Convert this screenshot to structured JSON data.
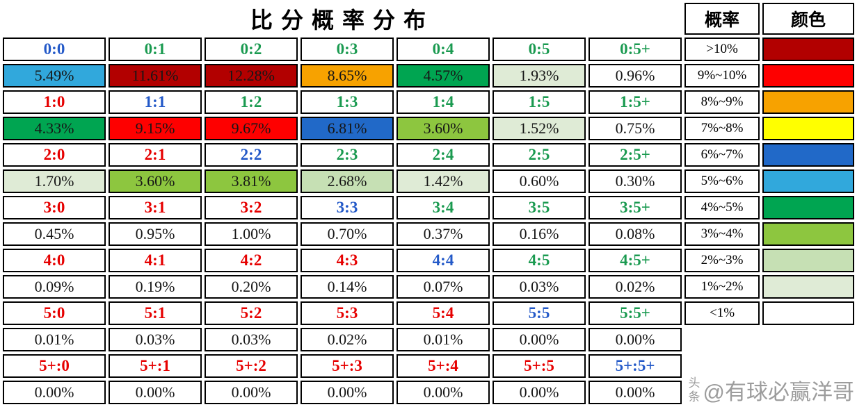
{
  "title": "比分概率分布",
  "score_colors": {
    "home_win": "#E60000",
    "draw": "#2359C8",
    "away_win": "#1A9A50"
  },
  "legend": {
    "prob_header": "概率",
    "color_header": "颜色",
    "entries": [
      {
        "range": ">10%",
        "color": "#B20000"
      },
      {
        "range": "9%~10%",
        "color": "#FE0000"
      },
      {
        "range": "8%~9%",
        "color": "#F7A200"
      },
      {
        "range": "7%~8%",
        "color": "#FFFF00"
      },
      {
        "range": "6%~7%",
        "color": "#2169C8"
      },
      {
        "range": "5%~6%",
        "color": "#31A8DC"
      },
      {
        "range": "4%~5%",
        "color": "#00A551"
      },
      {
        "range": "3%~4%",
        "color": "#8DC63F"
      },
      {
        "range": "2%~3%",
        "color": "#C6E0B4"
      },
      {
        "range": "1%~2%",
        "color": "#DFEBD6"
      },
      {
        "range": "<1%",
        "color": "#FFFFFF"
      }
    ]
  },
  "grid": {
    "row_pairs": [
      {
        "scores": [
          {
            "label": "0:0",
            "type": "draw"
          },
          {
            "label": "0:1",
            "type": "away_win"
          },
          {
            "label": "0:2",
            "type": "away_win"
          },
          {
            "label": "0:3",
            "type": "away_win"
          },
          {
            "label": "0:4",
            "type": "away_win"
          },
          {
            "label": "0:5",
            "type": "away_win"
          },
          {
            "label": "0:5+",
            "type": "away_win"
          }
        ],
        "values": [
          {
            "text": "5.49%",
            "bucket": 5
          },
          {
            "text": "11.61%",
            "bucket": 0
          },
          {
            "text": "12.28%",
            "bucket": 0
          },
          {
            "text": "8.65%",
            "bucket": 2
          },
          {
            "text": "4.57%",
            "bucket": 6
          },
          {
            "text": "1.93%",
            "bucket": 9
          },
          {
            "text": "0.96%",
            "bucket": 10
          }
        ]
      },
      {
        "scores": [
          {
            "label": "1:0",
            "type": "home_win"
          },
          {
            "label": "1:1",
            "type": "draw"
          },
          {
            "label": "1:2",
            "type": "away_win"
          },
          {
            "label": "1:3",
            "type": "away_win"
          },
          {
            "label": "1:4",
            "type": "away_win"
          },
          {
            "label": "1:5",
            "type": "away_win"
          },
          {
            "label": "1:5+",
            "type": "away_win"
          }
        ],
        "values": [
          {
            "text": "4.33%",
            "bucket": 6
          },
          {
            "text": "9.15%",
            "bucket": 1
          },
          {
            "text": "9.67%",
            "bucket": 1
          },
          {
            "text": "6.81%",
            "bucket": 4
          },
          {
            "text": "3.60%",
            "bucket": 7
          },
          {
            "text": "1.52%",
            "bucket": 9
          },
          {
            "text": "0.75%",
            "bucket": 10
          }
        ]
      },
      {
        "scores": [
          {
            "label": "2:0",
            "type": "home_win"
          },
          {
            "label": "2:1",
            "type": "home_win"
          },
          {
            "label": "2:2",
            "type": "draw"
          },
          {
            "label": "2:3",
            "type": "away_win"
          },
          {
            "label": "2:4",
            "type": "away_win"
          },
          {
            "label": "2:5",
            "type": "away_win"
          },
          {
            "label": "2:5+",
            "type": "away_win"
          }
        ],
        "values": [
          {
            "text": "1.70%",
            "bucket": 9
          },
          {
            "text": "3.60%",
            "bucket": 7
          },
          {
            "text": "3.81%",
            "bucket": 7
          },
          {
            "text": "2.68%",
            "bucket": 8
          },
          {
            "text": "1.42%",
            "bucket": 9
          },
          {
            "text": "0.60%",
            "bucket": 10
          },
          {
            "text": "0.30%",
            "bucket": 10
          }
        ]
      },
      {
        "scores": [
          {
            "label": "3:0",
            "type": "home_win"
          },
          {
            "label": "3:1",
            "type": "home_win"
          },
          {
            "label": "3:2",
            "type": "home_win"
          },
          {
            "label": "3:3",
            "type": "draw"
          },
          {
            "label": "3:4",
            "type": "away_win"
          },
          {
            "label": "3:5",
            "type": "away_win"
          },
          {
            "label": "3:5+",
            "type": "away_win"
          }
        ],
        "values": [
          {
            "text": "0.45%",
            "bucket": 10
          },
          {
            "text": "0.95%",
            "bucket": 10
          },
          {
            "text": "1.00%",
            "bucket": 10
          },
          {
            "text": "0.70%",
            "bucket": 10
          },
          {
            "text": "0.37%",
            "bucket": 10
          },
          {
            "text": "0.16%",
            "bucket": 10
          },
          {
            "text": "0.08%",
            "bucket": 10
          }
        ]
      },
      {
        "scores": [
          {
            "label": "4:0",
            "type": "home_win"
          },
          {
            "label": "4:1",
            "type": "home_win"
          },
          {
            "label": "4:2",
            "type": "home_win"
          },
          {
            "label": "4:3",
            "type": "home_win"
          },
          {
            "label": "4:4",
            "type": "draw"
          },
          {
            "label": "4:5",
            "type": "away_win"
          },
          {
            "label": "4:5+",
            "type": "away_win"
          }
        ],
        "values": [
          {
            "text": "0.09%",
            "bucket": 10
          },
          {
            "text": "0.19%",
            "bucket": 10
          },
          {
            "text": "0.20%",
            "bucket": 10
          },
          {
            "text": "0.14%",
            "bucket": 10
          },
          {
            "text": "0.07%",
            "bucket": 10
          },
          {
            "text": "0.03%",
            "bucket": 10
          },
          {
            "text": "0.02%",
            "bucket": 10
          }
        ]
      },
      {
        "scores": [
          {
            "label": "5:0",
            "type": "home_win"
          },
          {
            "label": "5:1",
            "type": "home_win"
          },
          {
            "label": "5:2",
            "type": "home_win"
          },
          {
            "label": "5:3",
            "type": "home_win"
          },
          {
            "label": "5:4",
            "type": "home_win"
          },
          {
            "label": "5:5",
            "type": "draw"
          },
          {
            "label": "5:5+",
            "type": "away_win"
          }
        ],
        "values": [
          {
            "text": "0.01%",
            "bucket": 10
          },
          {
            "text": "0.03%",
            "bucket": 10
          },
          {
            "text": "0.03%",
            "bucket": 10
          },
          {
            "text": "0.02%",
            "bucket": 10
          },
          {
            "text": "0.01%",
            "bucket": 10
          },
          {
            "text": "0.00%",
            "bucket": 10
          },
          {
            "text": "0.00%",
            "bucket": 10
          }
        ]
      },
      {
        "scores": [
          {
            "label": "5+:0",
            "type": "home_win"
          },
          {
            "label": "5+:1",
            "type": "home_win"
          },
          {
            "label": "5+:2",
            "type": "home_win"
          },
          {
            "label": "5+:3",
            "type": "home_win"
          },
          {
            "label": "5+:4",
            "type": "home_win"
          },
          {
            "label": "5+:5",
            "type": "home_win"
          },
          {
            "label": "5+:5+",
            "type": "draw"
          }
        ],
        "values": [
          {
            "text": "0.00%",
            "bucket": 10
          },
          {
            "text": "0.00%",
            "bucket": 10
          },
          {
            "text": "0.00%",
            "bucket": 10
          },
          {
            "text": "0.00%",
            "bucket": 10
          },
          {
            "text": "0.00%",
            "bucket": 10
          },
          {
            "text": "0.00%",
            "bucket": 10
          },
          {
            "text": "0.00%",
            "bucket": 10
          }
        ]
      }
    ]
  },
  "watermark": {
    "platform": "头条",
    "handle": "@有球必赢洋哥"
  },
  "chart_data": {
    "type": "heatmap",
    "title": "比分概率分布",
    "row_axis": "home_goals",
    "col_axis": "away_goals",
    "rows": [
      "0",
      "1",
      "2",
      "3",
      "4",
      "5",
      "5+"
    ],
    "cols": [
      "0",
      "1",
      "2",
      "3",
      "4",
      "5",
      "5+"
    ],
    "values_percent": [
      [
        5.49,
        11.61,
        12.28,
        8.65,
        4.57,
        1.93,
        0.96
      ],
      [
        4.33,
        9.15,
        9.67,
        6.81,
        3.6,
        1.52,
        0.75
      ],
      [
        1.7,
        3.6,
        3.81,
        2.68,
        1.42,
        0.6,
        0.3
      ],
      [
        0.45,
        0.95,
        1.0,
        0.7,
        0.37,
        0.16,
        0.08
      ],
      [
        0.09,
        0.19,
        0.2,
        0.14,
        0.07,
        0.03,
        0.02
      ],
      [
        0.01,
        0.03,
        0.03,
        0.02,
        0.01,
        0.0,
        0.0
      ],
      [
        0.0,
        0.0,
        0.0,
        0.0,
        0.0,
        0.0,
        0.0
      ]
    ],
    "legend_buckets": [
      ">10%",
      "9%~10%",
      "8%~9%",
      "7%~8%",
      "6%~7%",
      "5%~6%",
      "4%~5%",
      "3%~4%",
      "2%~3%",
      "1%~2%",
      "<1%"
    ],
    "legend_position": "right",
    "grid": true
  }
}
